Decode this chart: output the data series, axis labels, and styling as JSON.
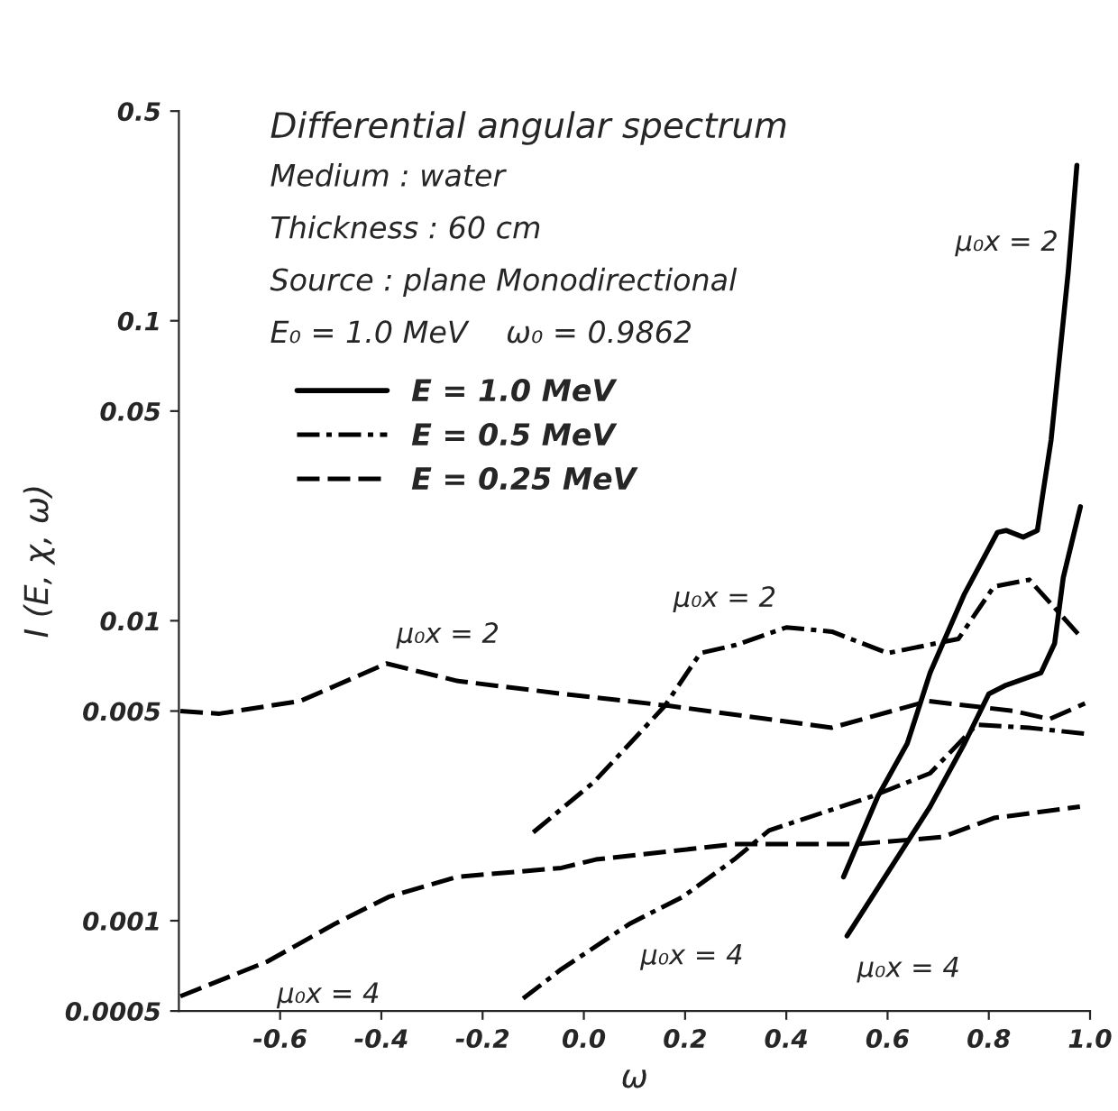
{
  "chart_data": {
    "type": "line",
    "title": "Differential angular spectrum",
    "annotations": [
      "Medium : water",
      "Thickness : 60 cm",
      "Source : plane Monodirectional",
      "E₀ = 1.0 MeV    ω₀ = 0.9862",
      {
        "text": "μ₀x = 2",
        "x": -0.39,
        "y": 0.0072
      },
      {
        "text": "μ₀x = 2",
        "x": 0.4,
        "y": 0.0095
      },
      {
        "text": "μ₀x = 4",
        "x": -0.626,
        "y": 0.00073
      },
      {
        "text": "μ₀x = 4",
        "x": 0.092,
        "y": 0.00098
      },
      {
        "text": "μ₀x = 2",
        "x": 0.957,
        "y": 0.146
      },
      {
        "text": "μ₀x = 4",
        "x": 0.52,
        "y": 0.00089
      }
    ],
    "xlabel": "ω",
    "ylabel": "I (E, χ, ω)",
    "log": "y",
    "xlim": [
      -0.8,
      1.0
    ],
    "ylim": [
      0.0005,
      0.5
    ],
    "xticks": [
      -0.6,
      -0.4,
      -0.2,
      {
        "value": 0,
        "label": "0.0"
      },
      0.2,
      0.4,
      0.6,
      0.8,
      {
        "value": 1,
        "label": "1.0"
      }
    ],
    "yticks": [
      0.0005,
      0.001,
      0.005,
      0.01,
      0.05,
      0.1,
      0.5
    ],
    "grid": false,
    "legend": "top left",
    "marker": "none",
    "series": [
      {
        "name": "E = 1.0 MeV",
        "color": "#000000",
        "line_style": "solid",
        "x": [
          0.513,
          0.581,
          0.639,
          0.684,
          0.752,
          0.817,
          0.834,
          0.868,
          0.896,
          0.906,
          0.923,
          0.957,
          0.974
        ],
        "values": [
          0.0014,
          0.0026,
          0.0039,
          0.0067,
          0.0123,
          0.0197,
          0.02,
          0.019,
          0.02,
          0.026,
          0.04,
          0.146,
          0.33
        ]
      },
      {
        "color": "#000000",
        "line_style": "solid",
        "x": [
          0.52,
          0.684,
          0.752,
          0.8,
          0.834,
          0.903,
          0.93,
          0.947,
          0.981
        ],
        "values": [
          0.00089,
          0.0024,
          0.0039,
          0.0057,
          0.0061,
          0.0067,
          0.0084,
          0.0139,
          0.024
        ]
      },
      {
        "name": "E = 0.5 MeV",
        "color": "#000000",
        "line_style": "dashdot",
        "x": [
          -0.1,
          0.02,
          0.16,
          0.23,
          0.3,
          0.4,
          0.49,
          0.6,
          0.74,
          0.81,
          0.88,
          0.98
        ],
        "values": [
          0.00197,
          0.0029,
          0.0052,
          0.0078,
          0.0083,
          0.0095,
          0.0092,
          0.0078,
          0.0087,
          0.013,
          0.0137,
          0.0089
        ]
      },
      {
        "color": "#000000",
        "line_style": "dashdot",
        "x": [
          -0.12,
          -0.044,
          0.092,
          0.195,
          0.297,
          0.366,
          0.57,
          0.684,
          0.776,
          0.879,
          0.99
        ],
        "values": [
          0.00055,
          0.00069,
          0.00098,
          0.0012,
          0.0016,
          0.002,
          0.0026,
          0.0031,
          0.0045,
          0.0044,
          0.0042
        ]
      },
      {
        "name": "E = 0.25 MeV",
        "color": "#000000",
        "line_style": "dashed",
        "x": [
          -0.797,
          -0.72,
          -0.56,
          -0.39,
          -0.25,
          -0.04,
          0.17,
          0.49,
          0.68,
          0.85,
          0.92,
          0.99
        ],
        "values": [
          0.005,
          0.0049,
          0.0054,
          0.0072,
          0.0063,
          0.0057,
          0.0052,
          0.0044,
          0.0054,
          0.005,
          0.0047,
          0.0053
        ]
      },
      {
        "color": "#000000",
        "line_style": "dashed",
        "x": [
          -0.797,
          -0.626,
          -0.49,
          -0.386,
          -0.25,
          -0.044,
          0.024,
          0.297,
          0.537,
          0.708,
          0.81,
          0.98
        ],
        "values": [
          0.00056,
          0.00073,
          0.00098,
          0.0012,
          0.0014,
          0.0015,
          0.0016,
          0.0018,
          0.0018,
          0.0019,
          0.0022,
          0.0024
        ]
      }
    ]
  }
}
